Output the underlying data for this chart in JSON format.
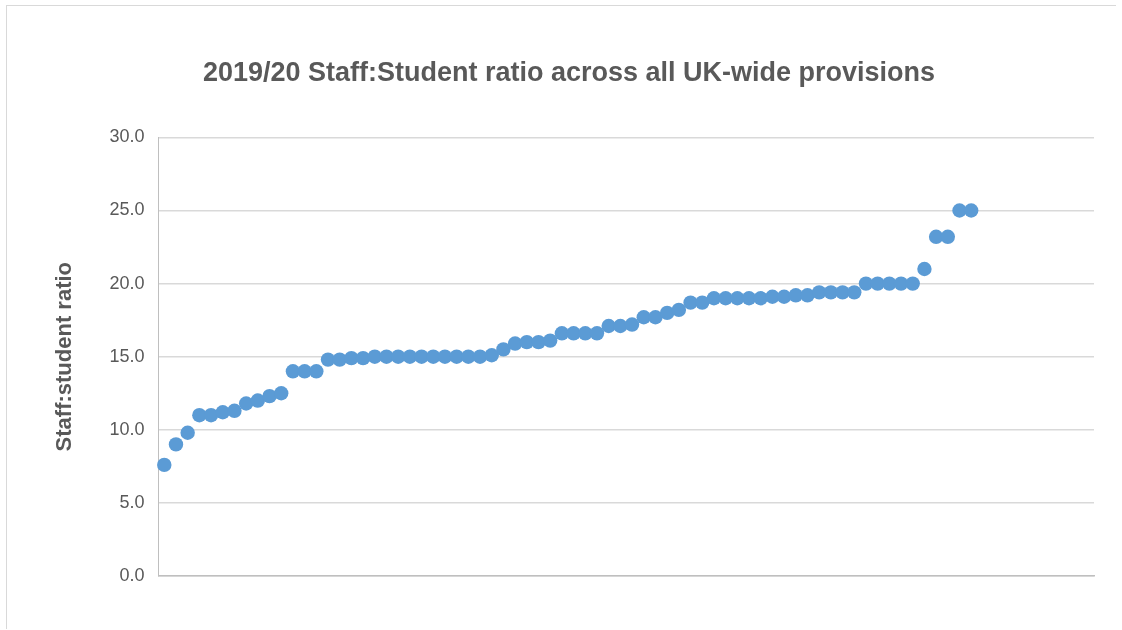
{
  "chart_data": {
    "type": "scatter",
    "title": "2019/20 Staff:Student ratio across all UK-wide provisions",
    "ylabel": "Staff:student ratio",
    "categories": [
      null,
      null,
      null,
      null,
      null,
      null,
      null,
      null,
      null,
      null,
      null,
      null,
      null,
      null,
      null,
      null,
      null,
      null,
      null,
      null,
      null,
      null,
      null,
      null,
      null,
      null,
      null,
      null,
      null,
      null,
      null,
      null,
      null,
      null,
      null,
      null,
      null,
      null,
      null,
      null,
      null,
      null,
      null,
      null,
      null,
      null,
      null,
      null,
      null,
      null,
      null,
      null,
      null,
      null,
      null,
      null,
      null,
      null,
      null,
      null,
      null,
      null,
      null,
      null,
      null,
      null,
      null,
      null,
      null,
      null,
      null,
      null,
      null,
      null,
      null,
      null,
      null,
      null,
      null,
      null
    ],
    "values": [
      7.6,
      9.0,
      9.8,
      11.0,
      11.0,
      11.2,
      11.3,
      11.8,
      12.0,
      12.3,
      12.5,
      14.0,
      14.0,
      14.0,
      14.8,
      14.8,
      14.9,
      14.9,
      15.0,
      15.0,
      15.0,
      15.0,
      15.0,
      15.0,
      15.0,
      15.0,
      15.0,
      15.0,
      15.1,
      15.5,
      15.9,
      16.0,
      16.0,
      16.1,
      16.6,
      16.6,
      16.6,
      16.6,
      17.1,
      17.1,
      17.2,
      17.7,
      17.7,
      18.0,
      18.2,
      18.7,
      18.7,
      19.0,
      19.0,
      19.0,
      19.0,
      19.0,
      19.1,
      19.1,
      19.2,
      19.2,
      19.4,
      19.4,
      19.4,
      19.4,
      20.0,
      20.0,
      20.0,
      20.0,
      20.0,
      21.0,
      23.2,
      23.2,
      25.0,
      25.0,
      null,
      null,
      null,
      null,
      null,
      null,
      null,
      null,
      null,
      null
    ],
    "color": "#5b9bd5",
    "ylim": [
      0,
      30
    ],
    "yticks": [
      {
        "value": 0,
        "label": "0.0"
      },
      {
        "value": 5,
        "label": "5.0"
      },
      {
        "value": 10,
        "label": "10.0"
      },
      {
        "value": 15,
        "label": "15.0"
      },
      {
        "value": 20,
        "label": "20.0"
      },
      {
        "value": 25,
        "label": "25.0"
      },
      {
        "value": 30,
        "label": "30.0"
      }
    ],
    "grid": "y",
    "marker": "circle",
    "tick_labels": "y"
  }
}
